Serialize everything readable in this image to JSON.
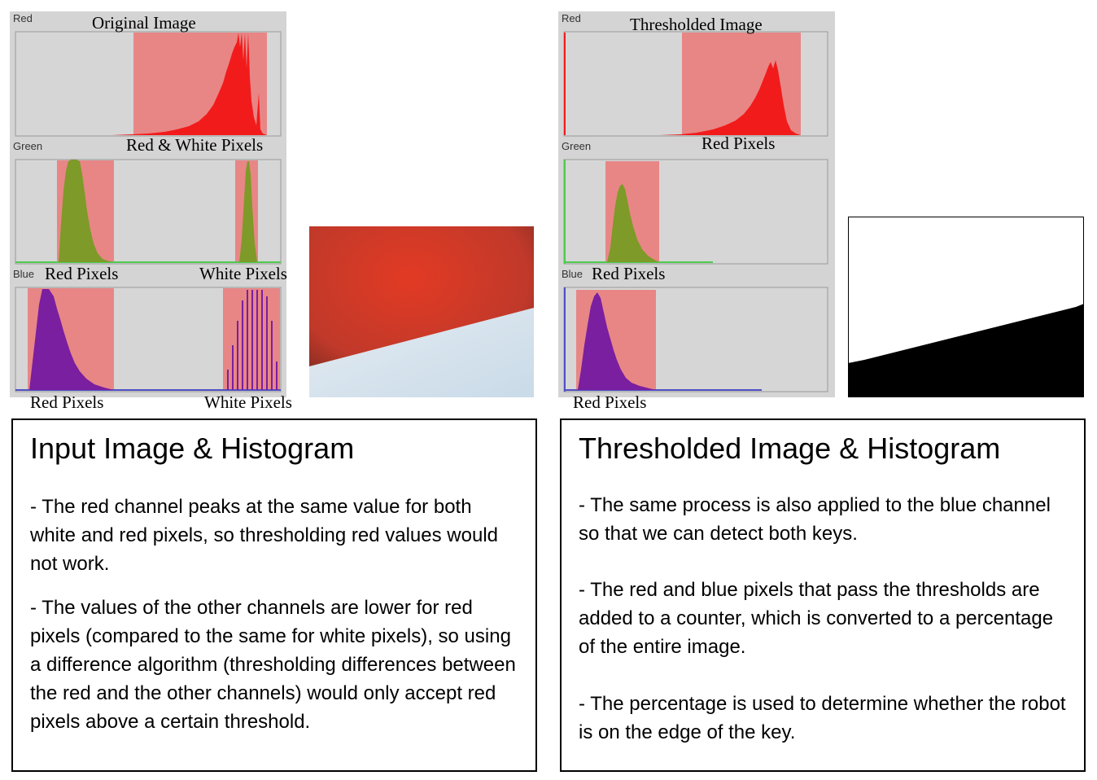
{
  "left_figure": {
    "red_channel_label": "Red",
    "green_channel_label": "Green",
    "blue_channel_label": "Blue",
    "title": "Original Image",
    "red_annotation": "Red & White Pixels",
    "green_annotation_red": "Red Pixels",
    "green_annotation_white": "White Pixels",
    "blue_annotation_red": "Red Pixels",
    "blue_annotation_white": "White Pixels"
  },
  "right_figure": {
    "red_channel_label": "Red",
    "green_channel_label": "Green",
    "blue_channel_label": "Blue",
    "title": "Thresholded Image",
    "red_annotation": "Red Pixels",
    "green_annotation_red": "Red Pixels",
    "blue_annotation_red": "Red Pixels"
  },
  "left_box": {
    "heading": "Input Image & Histogram",
    "para1": "- The red channel peaks at the same value for both white and red pixels, so thresholding red values would not work.",
    "para2": "- The values of the other channels are lower for red pixels (compared to the same for white pixels), so using a difference algorithm (thresholding differences between the red and the other channels) would only accept red pixels above a certain threshold."
  },
  "right_box": {
    "heading": "Thresholded Image & Histogram",
    "para1": "- The same process is also applied to the blue channel so that we can detect both keys.",
    "para2": "- The red and blue pixels that pass the thresholds are added to a counter, which is converted to a percentage of the entire image.",
    "para3": "- The percentage is used to determine whether the robot is on the edge of the key."
  },
  "colors": {
    "panel_bg": "#d4d4d4",
    "highlight": "#e88686",
    "red_hist": "#f21b1b",
    "green_hist": "#7e9a28",
    "blue_hist": "#7a1fa0",
    "green_line": "#4ecb4e",
    "blue_line": "#5050c8"
  }
}
